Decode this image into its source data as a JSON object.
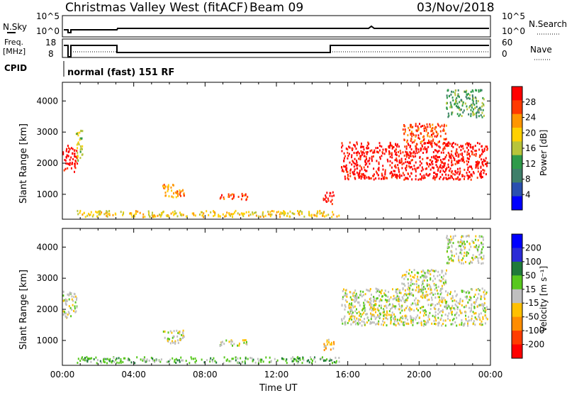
{
  "header": {
    "title": "Christmas Valley West (fitACF)",
    "beam": "Beam 09",
    "date": "03/Nov/2018"
  },
  "strip_labels": {
    "nsky": "N.Sky",
    "freq_line1": "Freq.",
    "freq_line2": "[MHz]",
    "cpid": "CPID",
    "nsearch": "N.Search",
    "nave": "Nave",
    "cpid_value": "normal (fast) 151 RF",
    "sky_ticks": [
      "10^5",
      "10^0"
    ],
    "freq_ticks": [
      "18",
      "8"
    ],
    "nave_ticks": [
      "60",
      "0"
    ],
    "search_ticks": [
      "10^5",
      "10^0"
    ]
  },
  "colors": {
    "power_scale": [
      "#0000ff",
      "#2a4fb0",
      "#3f7f6a",
      "#2f9a4a",
      "#b8c43a",
      "#ffd000",
      "#ff9600",
      "#ff3a00",
      "#ff0000"
    ],
    "velocity_scale": [
      "#0000ff",
      "#2b2bd6",
      "#1f7a3a",
      "#58c81e",
      "#bfbfbf",
      "#ffc000",
      "#ff8c00",
      "#ff3c00",
      "#ff0000"
    ]
  },
  "chart_data": [
    {
      "type": "heatmap",
      "name": "power",
      "ylabel": "Slant Range [km]",
      "colorbar_label": "Power [dB]",
      "colorbar_ticks": [
        "28",
        "24",
        "20",
        "16",
        "12",
        "8",
        "4"
      ],
      "yticks": [
        "4000",
        "3000",
        "2000",
        "1000"
      ],
      "ylim": [
        200,
        4600
      ],
      "xlim": [
        0,
        24
      ],
      "features": [
        {
          "t0": 0.0,
          "t1": 0.8,
          "r0": 1750,
          "r1": 2600,
          "level": 8
        },
        {
          "t0": 0.7,
          "t1": 1.1,
          "r0": 2100,
          "r1": 3100,
          "level": 4
        },
        {
          "t0": 5.6,
          "t1": 6.8,
          "r0": 900,
          "r1": 1350,
          "level": 6
        },
        {
          "t0": 8.8,
          "t1": 10.4,
          "r0": 850,
          "r1": 1050,
          "level": 7
        },
        {
          "t0": 0.8,
          "t1": 15.5,
          "r0": 300,
          "r1": 500,
          "level": 5
        },
        {
          "t0": 14.6,
          "t1": 15.2,
          "r0": 700,
          "r1": 1100,
          "level": 8
        },
        {
          "t0": 15.6,
          "t1": 23.8,
          "r0": 1500,
          "r1": 2700,
          "level": 8
        },
        {
          "t0": 19.0,
          "t1": 21.5,
          "r0": 2700,
          "r1": 3300,
          "level": 7
        },
        {
          "t0": 21.5,
          "t1": 23.6,
          "r0": 3500,
          "r1": 4400,
          "level": 3
        }
      ]
    },
    {
      "type": "heatmap",
      "name": "velocity",
      "xlabel": "Time UT",
      "ylabel": "Slant Range [km]",
      "colorbar_label": "Velocity [m s⁻¹]",
      "colorbar_ticks": [
        "200",
        "100",
        "50",
        "15",
        "-15",
        "-50",
        "-100",
        "-200"
      ],
      "yticks": [
        "4000",
        "3000",
        "2000",
        "1000"
      ],
      "xticks": [
        "00:00",
        "04:00",
        "08:00",
        "12:00",
        "16:00",
        "20:00",
        "00:00"
      ],
      "ylim": [
        200,
        4600
      ],
      "xlim": [
        0,
        24
      ],
      "features": [
        {
          "t0": 0.0,
          "t1": 0.8,
          "r0": 1750,
          "r1": 2600,
          "level": 4
        },
        {
          "t0": 5.6,
          "t1": 6.8,
          "r0": 900,
          "r1": 1350,
          "level": 4
        },
        {
          "t0": 8.8,
          "t1": 10.4,
          "r0": 850,
          "r1": 1050,
          "level": 4
        },
        {
          "t0": 0.8,
          "t1": 15.5,
          "r0": 300,
          "r1": 500,
          "level": 3
        },
        {
          "t0": 14.6,
          "t1": 15.2,
          "r0": 700,
          "r1": 1100,
          "level": 5
        },
        {
          "t0": 15.6,
          "t1": 23.8,
          "r0": 1500,
          "r1": 2700,
          "level": 4
        },
        {
          "t0": 19.0,
          "t1": 21.5,
          "r0": 2700,
          "r1": 3300,
          "level": 4
        },
        {
          "t0": 21.5,
          "t1": 23.6,
          "r0": 3500,
          "r1": 4400,
          "level": 4
        }
      ]
    }
  ]
}
